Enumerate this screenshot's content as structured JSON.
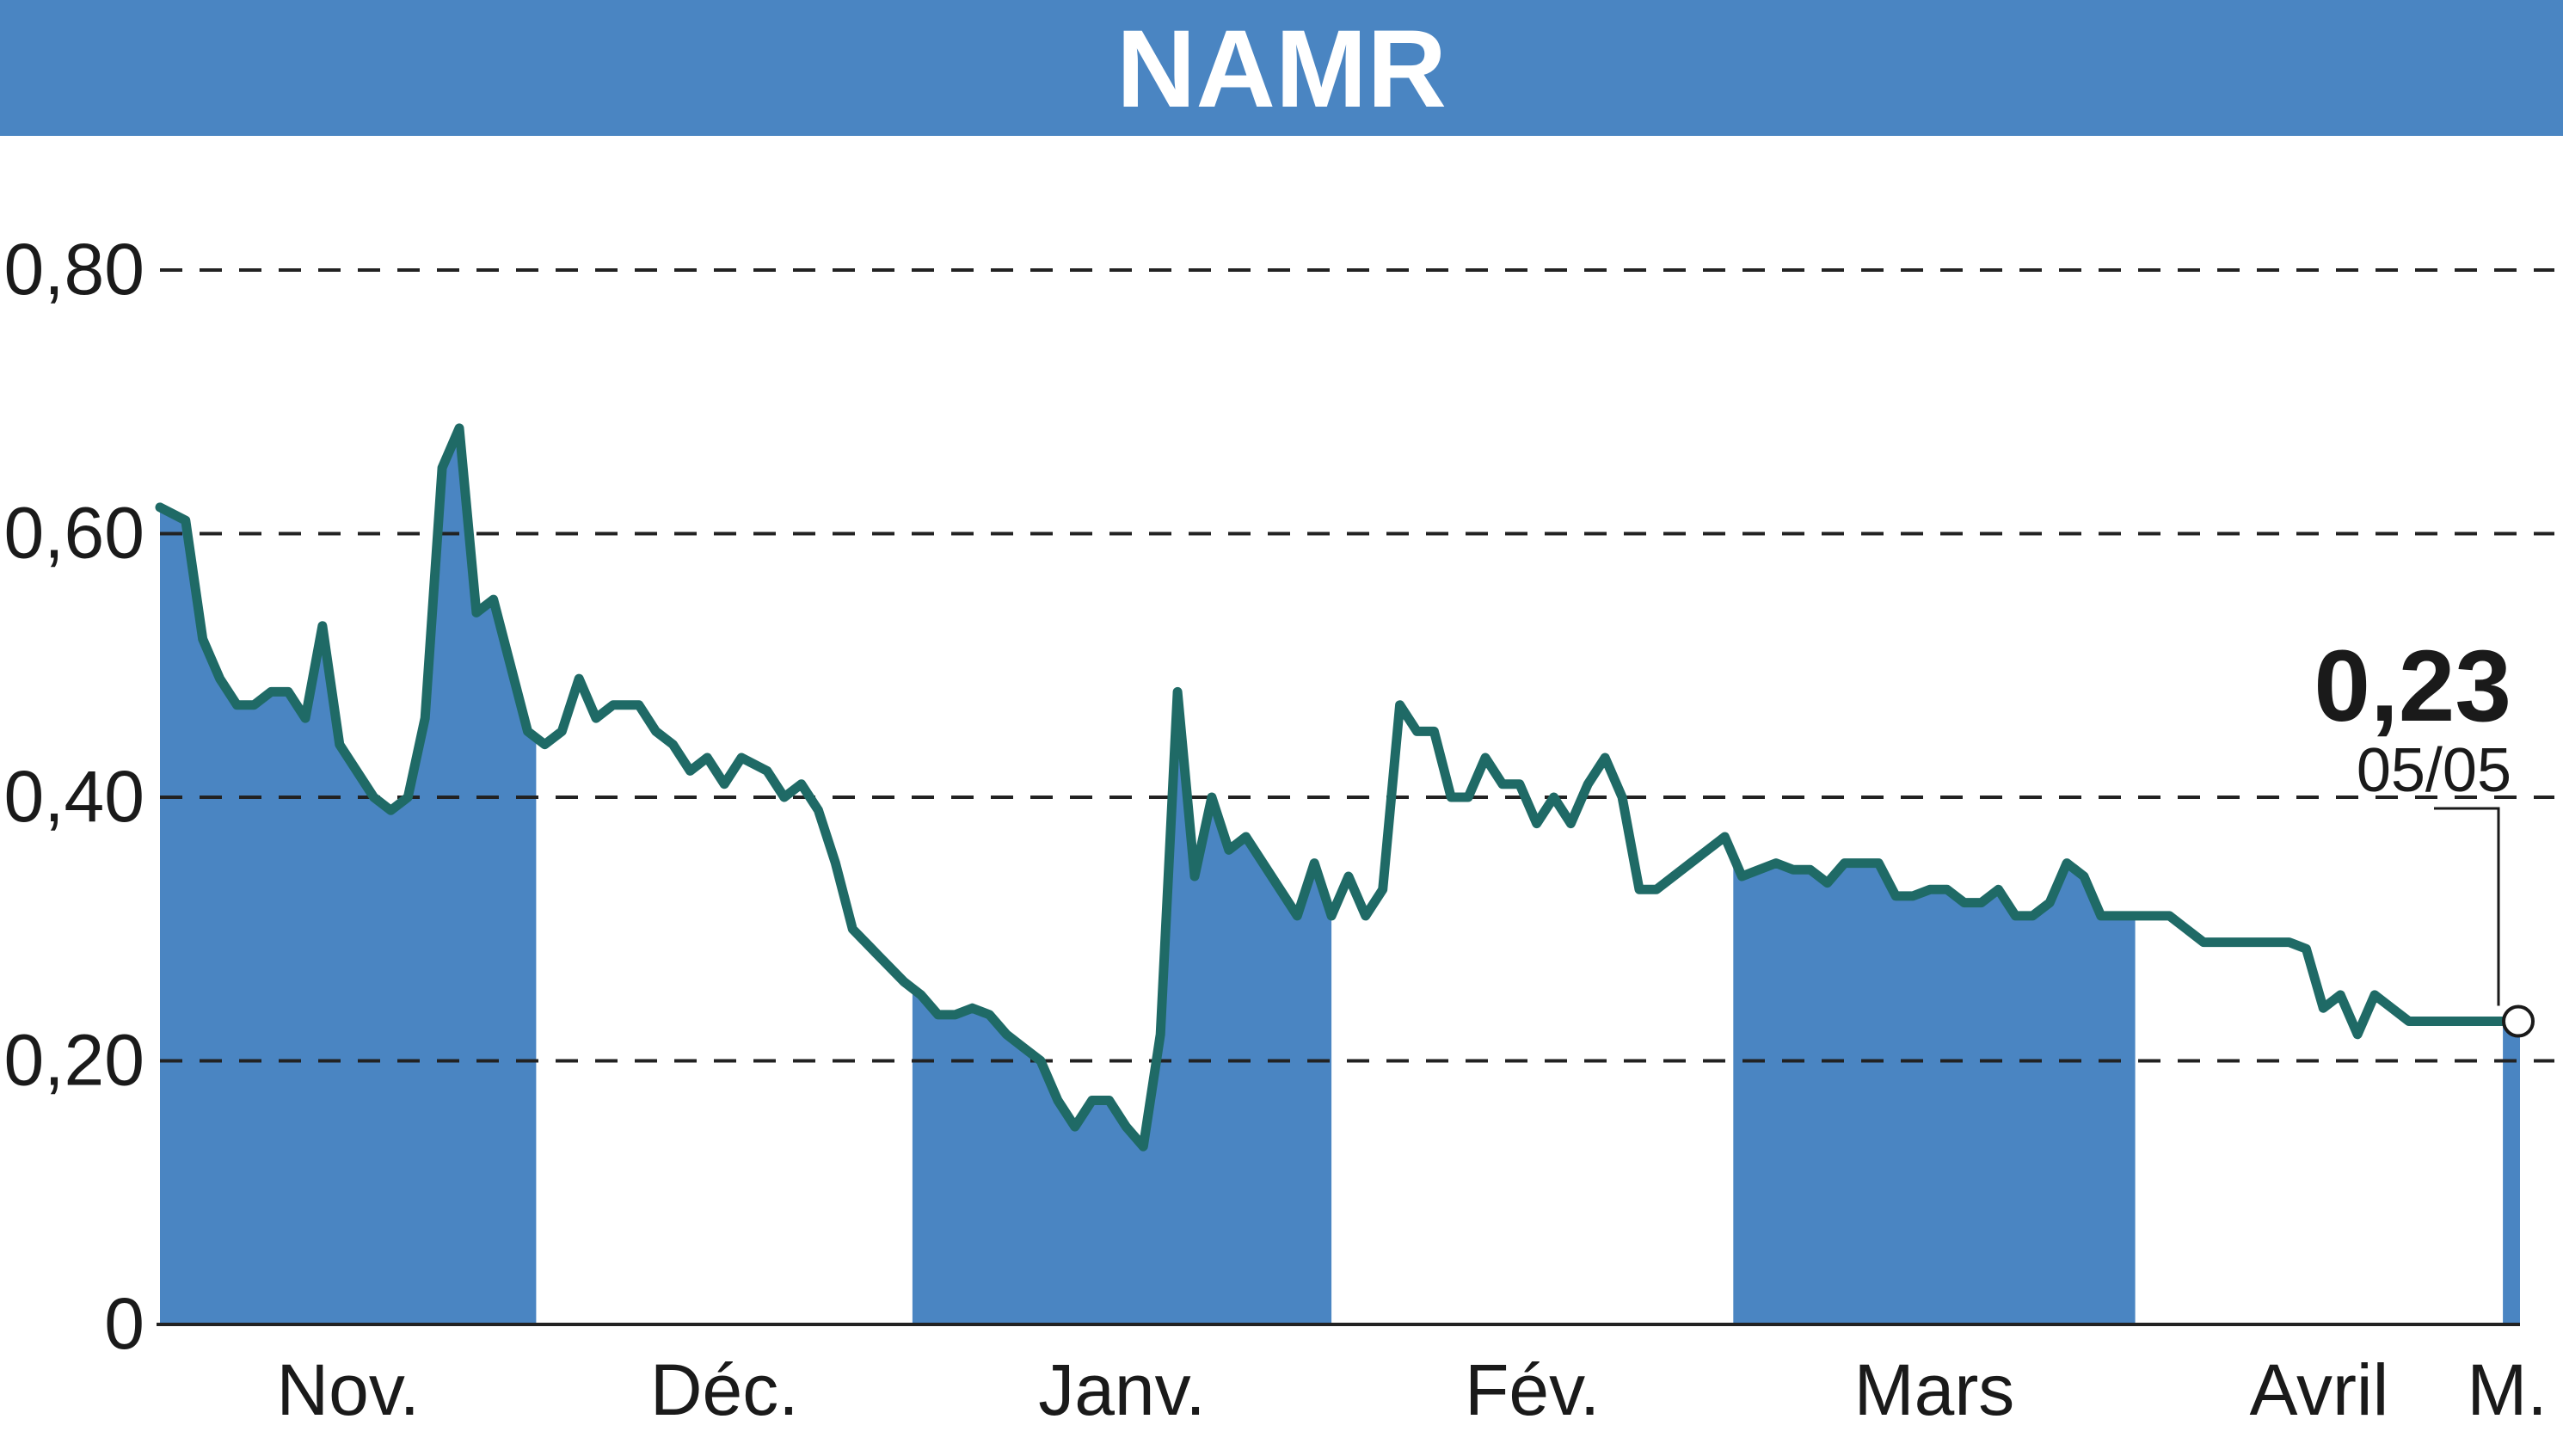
{
  "header": {
    "title": "NAMR"
  },
  "colors": {
    "header_band": "#4a85c2",
    "month_band": "#4a85c2",
    "line": "#1f6a66",
    "grid": "#222222",
    "text": "#1a1a1a",
    "marker_fill": "#ffffff"
  },
  "chart_data": {
    "type": "line",
    "title": "NAMR",
    "ylim": [
      0,
      0.8
    ],
    "yticks": [
      {
        "value": 0,
        "label": "0"
      },
      {
        "value": 0.2,
        "label": "0,20"
      },
      {
        "value": 0.4,
        "label": "0,40"
      },
      {
        "value": 0.6,
        "label": "0,60"
      },
      {
        "value": 0.8,
        "label": "0,80"
      }
    ],
    "grid": "dashed horizontal",
    "months": [
      {
        "label": "Nov.",
        "start": 0,
        "end": 44,
        "shaded": true
      },
      {
        "label": "Déc.",
        "start": 44,
        "end": 88,
        "shaded": false
      },
      {
        "label": "Janv.",
        "start": 88,
        "end": 137,
        "shaded": true
      },
      {
        "label": "Fév.",
        "start": 137,
        "end": 184,
        "shaded": false
      },
      {
        "label": "Mars",
        "start": 184,
        "end": 231,
        "shaded": true
      },
      {
        "label": "Avril",
        "start": 231,
        "end": 274,
        "shaded": false
      },
      {
        "label": "M.",
        "start": 274,
        "end": 276,
        "shaded": true
      }
    ],
    "series": [
      {
        "points": [
          [
            0,
            0.62
          ],
          [
            3,
            0.61
          ],
          [
            5,
            0.52
          ],
          [
            7,
            0.49
          ],
          [
            9,
            0.47
          ],
          [
            11,
            0.47
          ],
          [
            13,
            0.48
          ],
          [
            15,
            0.48
          ],
          [
            17,
            0.46
          ],
          [
            19,
            0.53
          ],
          [
            21,
            0.44
          ],
          [
            23,
            0.42
          ],
          [
            25,
            0.4
          ],
          [
            27,
            0.39
          ],
          [
            29,
            0.4
          ],
          [
            31,
            0.46
          ],
          [
            33,
            0.65
          ],
          [
            35,
            0.68
          ],
          [
            37,
            0.54
          ],
          [
            39,
            0.55
          ],
          [
            41,
            0.5
          ],
          [
            43,
            0.45
          ],
          [
            45,
            0.44
          ],
          [
            47,
            0.45
          ],
          [
            49,
            0.49
          ],
          [
            51,
            0.46
          ],
          [
            53,
            0.47
          ],
          [
            56,
            0.47
          ],
          [
            58,
            0.45
          ],
          [
            60,
            0.44
          ],
          [
            62,
            0.42
          ],
          [
            64,
            0.43
          ],
          [
            66,
            0.41
          ],
          [
            68,
            0.43
          ],
          [
            71,
            0.42
          ],
          [
            73,
            0.4
          ],
          [
            75,
            0.41
          ],
          [
            77,
            0.39
          ],
          [
            79,
            0.35
          ],
          [
            81,
            0.3
          ],
          [
            84,
            0.28
          ],
          [
            87,
            0.26
          ],
          [
            89,
            0.25
          ],
          [
            91,
            0.235
          ],
          [
            93,
            0.235
          ],
          [
            95,
            0.24
          ],
          [
            97,
            0.235
          ],
          [
            99,
            0.22
          ],
          [
            101,
            0.21
          ],
          [
            103,
            0.2
          ],
          [
            105,
            0.17
          ],
          [
            107,
            0.15
          ],
          [
            109,
            0.17
          ],
          [
            111,
            0.17
          ],
          [
            113,
            0.15
          ],
          [
            115,
            0.135
          ],
          [
            117,
            0.22
          ],
          [
            119,
            0.48
          ],
          [
            121,
            0.34
          ],
          [
            123,
            0.4
          ],
          [
            125,
            0.36
          ],
          [
            127,
            0.37
          ],
          [
            129,
            0.35
          ],
          [
            131,
            0.33
          ],
          [
            133,
            0.31
          ],
          [
            135,
            0.35
          ],
          [
            137,
            0.31
          ],
          [
            139,
            0.34
          ],
          [
            141,
            0.31
          ],
          [
            143,
            0.33
          ],
          [
            145,
            0.47
          ],
          [
            147,
            0.45
          ],
          [
            149,
            0.45
          ],
          [
            151,
            0.4
          ],
          [
            153,
            0.4
          ],
          [
            155,
            0.43
          ],
          [
            157,
            0.41
          ],
          [
            159,
            0.41
          ],
          [
            161,
            0.38
          ],
          [
            163,
            0.4
          ],
          [
            165,
            0.38
          ],
          [
            167,
            0.41
          ],
          [
            169,
            0.43
          ],
          [
            171,
            0.4
          ],
          [
            173,
            0.33
          ],
          [
            175,
            0.33
          ],
          [
            177,
            0.34
          ],
          [
            179,
            0.35
          ],
          [
            181,
            0.36
          ],
          [
            183,
            0.37
          ],
          [
            185,
            0.34
          ],
          [
            187,
            0.345
          ],
          [
            189,
            0.35
          ],
          [
            191,
            0.345
          ],
          [
            193,
            0.345
          ],
          [
            195,
            0.335
          ],
          [
            197,
            0.35
          ],
          [
            199,
            0.35
          ],
          [
            201,
            0.35
          ],
          [
            203,
            0.325
          ],
          [
            205,
            0.325
          ],
          [
            207,
            0.33
          ],
          [
            209,
            0.33
          ],
          [
            211,
            0.32
          ],
          [
            213,
            0.32
          ],
          [
            215,
            0.33
          ],
          [
            217,
            0.31
          ],
          [
            219,
            0.31
          ],
          [
            221,
            0.32
          ],
          [
            223,
            0.35
          ],
          [
            225,
            0.34
          ],
          [
            227,
            0.31
          ],
          [
            229,
            0.31
          ],
          [
            231,
            0.31
          ],
          [
            233,
            0.31
          ],
          [
            235,
            0.31
          ],
          [
            237,
            0.3
          ],
          [
            239,
            0.29
          ],
          [
            241,
            0.29
          ],
          [
            243,
            0.29
          ],
          [
            245,
            0.29
          ],
          [
            247,
            0.29
          ],
          [
            249,
            0.29
          ],
          [
            251,
            0.285
          ],
          [
            253,
            0.24
          ],
          [
            255,
            0.25
          ],
          [
            257,
            0.22
          ],
          [
            259,
            0.25
          ],
          [
            261,
            0.24
          ],
          [
            263,
            0.23
          ],
          [
            275,
            0.23
          ]
        ]
      }
    ],
    "last_value": {
      "label": "0,23",
      "date": "05/05",
      "value": 0.23
    }
  }
}
